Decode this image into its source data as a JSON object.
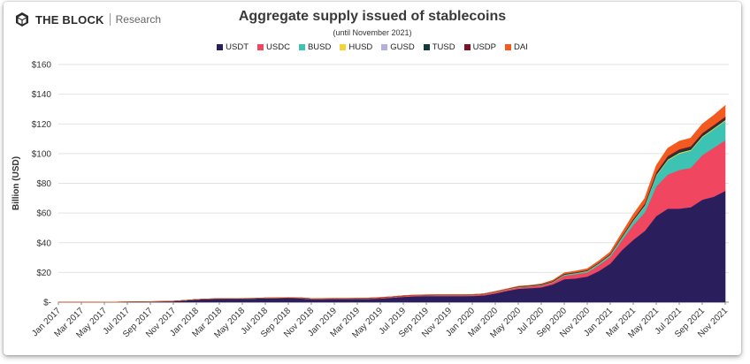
{
  "brand": {
    "name": "THE BLOCK",
    "sub": "Research",
    "logo_icon": "cube-logo-icon"
  },
  "colors": {
    "USDT": "#2a1f5c",
    "USDC": "#f0465f",
    "BUSD": "#3cc3b3",
    "HUSD": "#f5d33a",
    "GUSD": "#b4b0e0",
    "TUSD": "#123c3c",
    "USDP": "#7a1426",
    "DAI": "#f25a1f"
  },
  "chart_data": {
    "type": "area",
    "stacked": true,
    "title": "Aggregate supply issued of stablecoins",
    "subtitle": "(until November 2021)",
    "ylabel": "Billion (USD)",
    "xlabel": "",
    "ylim": [
      0,
      160
    ],
    "yticks": [
      0,
      20,
      40,
      60,
      80,
      100,
      120,
      140,
      160
    ],
    "ytick_labels": [
      "$-",
      "$20",
      "$40",
      "$60",
      "$80",
      "$100",
      "$120",
      "$140",
      "$160"
    ],
    "xtick_labels": [
      "Jan 2017",
      "Mar 2017",
      "May 2017",
      "Jul 2017",
      "Sep 2017",
      "Nov 2017",
      "Jan 2018",
      "Mar 2018",
      "May 2018",
      "Jul 2018",
      "Sep 2018",
      "Nov 2018",
      "Jan 2019",
      "Mar 2019",
      "May 2019",
      "Jul 2019",
      "Sep 2019",
      "Nov 2019",
      "Jan 2020",
      "Mar 2020",
      "May 2020",
      "Jul 2020",
      "Sep 2020",
      "Nov 2020",
      "Jan 2021",
      "Mar 2021",
      "May 2021",
      "Jul 2021",
      "Sep 2021",
      "Nov 2021"
    ],
    "legend_position": "top-center",
    "grid": true,
    "x": [
      "Jan 2017",
      "Feb 2017",
      "Mar 2017",
      "Apr 2017",
      "May 2017",
      "Jun 2017",
      "Jul 2017",
      "Aug 2017",
      "Sep 2017",
      "Oct 2017",
      "Nov 2017",
      "Dec 2017",
      "Jan 2018",
      "Feb 2018",
      "Mar 2018",
      "Apr 2018",
      "May 2018",
      "Jun 2018",
      "Jul 2018",
      "Aug 2018",
      "Sep 2018",
      "Oct 2018",
      "Nov 2018",
      "Dec 2018",
      "Jan 2019",
      "Feb 2019",
      "Mar 2019",
      "Apr 2019",
      "May 2019",
      "Jun 2019",
      "Jul 2019",
      "Aug 2019",
      "Sep 2019",
      "Oct 2019",
      "Nov 2019",
      "Dec 2019",
      "Jan 2020",
      "Feb 2020",
      "Mar 2020",
      "Apr 2020",
      "May 2020",
      "Jun 2020",
      "Jul 2020",
      "Aug 2020",
      "Sep 2020",
      "Oct 2020",
      "Nov 2020",
      "Dec 2020",
      "Jan 2021",
      "Feb 2021",
      "Mar 2021",
      "Apr 2021",
      "May 2021",
      "Jun 2021",
      "Jul 2021",
      "Aug 2021",
      "Sep 2021",
      "Oct 2021",
      "Nov 2021"
    ],
    "series": [
      {
        "name": "USDT",
        "values": [
          0.01,
          0.02,
          0.03,
          0.05,
          0.1,
          0.1,
          0.2,
          0.3,
          0.4,
          0.5,
          0.7,
          1.2,
          1.8,
          2.2,
          2.3,
          2.3,
          2.4,
          2.5,
          2.7,
          2.8,
          2.8,
          2.6,
          1.9,
          1.9,
          2.0,
          2.0,
          2.1,
          2.2,
          2.5,
          3.0,
          3.6,
          4.0,
          4.1,
          4.1,
          4.1,
          4.1,
          4.2,
          4.6,
          5.9,
          7.6,
          9.0,
          9.5,
          10.0,
          12.0,
          15.5,
          16.0,
          17.3,
          21.0,
          26.0,
          35.0,
          42.0,
          48.0,
          58.0,
          63.0,
          63.0,
          64.0,
          69.0,
          71.0,
          75.0
        ]
      },
      {
        "name": "USDC",
        "values": [
          0,
          0,
          0,
          0,
          0,
          0,
          0,
          0,
          0,
          0,
          0,
          0,
          0,
          0,
          0,
          0,
          0,
          0,
          0,
          0,
          0.1,
          0.2,
          0.3,
          0.3,
          0.3,
          0.3,
          0.3,
          0.3,
          0.4,
          0.4,
          0.5,
          0.5,
          0.5,
          0.5,
          0.5,
          0.5,
          0.5,
          0.6,
          0.8,
          0.8,
          0.9,
          1.0,
          1.2,
          1.3,
          2.3,
          2.8,
          2.8,
          3.9,
          4.5,
          6.5,
          10.0,
          12.5,
          20.0,
          23.0,
          26.0,
          26.5,
          30.0,
          33.0,
          34.0
        ]
      },
      {
        "name": "BUSD",
        "values": [
          0,
          0,
          0,
          0,
          0,
          0,
          0,
          0,
          0,
          0,
          0,
          0,
          0,
          0,
          0,
          0,
          0,
          0,
          0,
          0,
          0,
          0,
          0,
          0,
          0,
          0,
          0,
          0,
          0,
          0,
          0,
          0,
          0.05,
          0.1,
          0.1,
          0.1,
          0.1,
          0.1,
          0.1,
          0.1,
          0.2,
          0.2,
          0.2,
          0.2,
          0.5,
          0.6,
          0.7,
          0.9,
          1.0,
          1.7,
          2.5,
          4.0,
          7.0,
          9.5,
          11.0,
          11.5,
          12.0,
          12.5,
          13.0
        ]
      },
      {
        "name": "HUSD",
        "values": [
          0,
          0,
          0,
          0,
          0,
          0,
          0,
          0,
          0,
          0,
          0,
          0,
          0,
          0,
          0,
          0,
          0,
          0,
          0,
          0,
          0,
          0,
          0,
          0,
          0,
          0,
          0,
          0,
          0,
          0,
          0,
          0,
          0.02,
          0.03,
          0.04,
          0.05,
          0.05,
          0.06,
          0.1,
          0.1,
          0.1,
          0.1,
          0.15,
          0.2,
          0.2,
          0.2,
          0.25,
          0.25,
          0.3,
          0.3,
          0.4,
          0.5,
          0.6,
          0.6,
          0.6,
          0.6,
          0.6,
          0.6,
          0.6
        ]
      },
      {
        "name": "GUSD",
        "values": [
          0,
          0,
          0,
          0,
          0,
          0,
          0,
          0,
          0,
          0,
          0,
          0,
          0,
          0,
          0,
          0,
          0,
          0,
          0,
          0,
          0.02,
          0.03,
          0.03,
          0.03,
          0.03,
          0.03,
          0.03,
          0.03,
          0.03,
          0.03,
          0.03,
          0.03,
          0.03,
          0.03,
          0.03,
          0.03,
          0.03,
          0.03,
          0.03,
          0.03,
          0.03,
          0.03,
          0.03,
          0.03,
          0.05,
          0.05,
          0.05,
          0.05,
          0.05,
          0.05,
          0.05,
          0.05,
          0.06,
          0.07,
          0.08,
          0.09,
          0.09,
          0.1,
          0.1
        ]
      },
      {
        "name": "TUSD",
        "values": [
          0,
          0,
          0,
          0,
          0,
          0,
          0,
          0,
          0,
          0,
          0,
          0,
          0,
          0,
          0.05,
          0.1,
          0.1,
          0.1,
          0.15,
          0.15,
          0.18,
          0.2,
          0.2,
          0.2,
          0.2,
          0.2,
          0.2,
          0.2,
          0.2,
          0.2,
          0.2,
          0.2,
          0.2,
          0.2,
          0.2,
          0.2,
          0.2,
          0.2,
          0.2,
          0.2,
          0.25,
          0.3,
          0.35,
          0.4,
          0.45,
          0.4,
          0.4,
          0.4,
          0.4,
          0.4,
          0.5,
          0.6,
          1.0,
          1.4,
          1.4,
          1.4,
          1.3,
          1.2,
          1.2
        ]
      },
      {
        "name": "USDP",
        "values": [
          0,
          0,
          0,
          0,
          0,
          0,
          0,
          0,
          0,
          0,
          0,
          0,
          0,
          0,
          0,
          0,
          0,
          0,
          0,
          0,
          0.01,
          0.02,
          0.02,
          0.03,
          0.03,
          0.03,
          0.03,
          0.03,
          0.03,
          0.03,
          0.03,
          0.03,
          0.03,
          0.03,
          0.03,
          0.03,
          0.03,
          0.03,
          0.05,
          0.05,
          0.1,
          0.1,
          0.12,
          0.14,
          0.15,
          0.15,
          0.15,
          0.2,
          0.3,
          0.4,
          0.6,
          0.8,
          0.9,
          0.9,
          0.9,
          0.9,
          0.9,
          0.9,
          1.0
        ]
      },
      {
        "name": "DAI",
        "values": [
          0,
          0,
          0,
          0,
          0,
          0,
          0,
          0,
          0,
          0,
          0,
          0.01,
          0.03,
          0.03,
          0.03,
          0.04,
          0.04,
          0.05,
          0.06,
          0.06,
          0.06,
          0.07,
          0.07,
          0.08,
          0.08,
          0.08,
          0.08,
          0.08,
          0.08,
          0.1,
          0.1,
          0.1,
          0.1,
          0.1,
          0.1,
          0.1,
          0.1,
          0.1,
          0.1,
          0.1,
          0.15,
          0.15,
          0.3,
          0.5,
          0.6,
          0.8,
          0.9,
          1.1,
          1.3,
          2.2,
          3.0,
          3.5,
          4.5,
          5.2,
          5.4,
          5.5,
          6.0,
          6.5,
          7.5
        ]
      }
    ]
  }
}
